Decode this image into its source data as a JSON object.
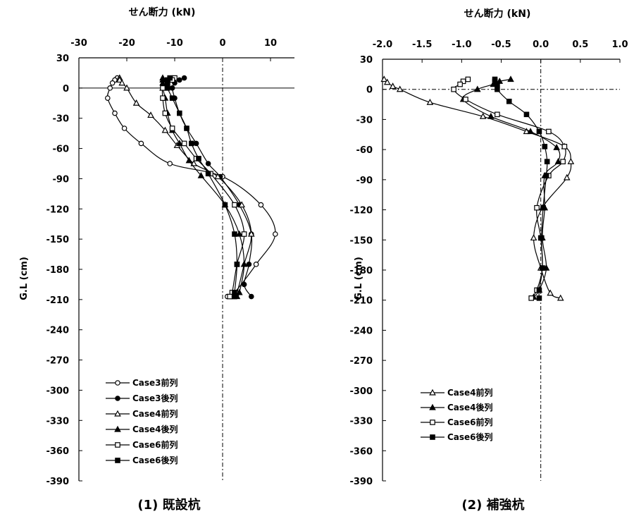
{
  "chart_data": [
    {
      "type": "line",
      "caption": "(1) 既設杭",
      "xlabel": "せん断力 (kN)",
      "ylabel": "G.L (cm)",
      "xlim": [
        -30,
        15
      ],
      "xticks": [
        -30,
        -20,
        -10,
        0,
        10
      ],
      "ylim": [
        -390,
        30
      ],
      "yticks": [
        30,
        0,
        -30,
        -60,
        -90,
        -120,
        -150,
        -180,
        -210,
        -240,
        -270,
        -300,
        -330,
        -360,
        -390
      ],
      "legend_position": "bottom-left",
      "series": [
        {
          "name": "Case3前列",
          "marker": "circle",
          "filled": false,
          "x": [
            -22,
            -22.5,
            -23,
            -23.5,
            -24,
            -22.5,
            -20.5,
            -17,
            -11,
            0,
            8,
            11,
            7,
            2.5,
            1
          ],
          "y": [
            10,
            8,
            5,
            0,
            -10,
            -25,
            -40,
            -55,
            -75,
            -88,
            -116,
            -145,
            -175,
            -203,
            -207
          ]
        },
        {
          "name": "Case3後列",
          "marker": "circle",
          "filled": true,
          "x": [
            -8,
            -9,
            -10,
            -10.5,
            -10,
            -9,
            -7.5,
            -5.5,
            -3,
            -0.5,
            3.5,
            6,
            5.5,
            4.5,
            6
          ],
          "y": [
            10,
            8,
            5,
            0,
            -10,
            -25,
            -40,
            -55,
            -75,
            -88,
            -116,
            -145,
            -175,
            -195,
            -207
          ]
        },
        {
          "name": "Case4前列",
          "marker": "triangle",
          "filled": false,
          "x": [
            -21.5,
            -21.5,
            -21,
            -20,
            -18,
            -15,
            -12,
            -9.5,
            -6,
            -1,
            4,
            6,
            4.5,
            3,
            2
          ],
          "y": [
            10,
            8,
            5,
            0,
            -15,
            -27,
            -42,
            -57,
            -75,
            -88,
            -116,
            -145,
            -175,
            -203,
            -207
          ]
        },
        {
          "name": "Case4後列",
          "marker": "triangle",
          "filled": true,
          "x": [
            -12.5,
            -12.5,
            -12.5,
            -12.5,
            -12,
            -11.5,
            -10.5,
            -9,
            -7,
            -4.5,
            0.5,
            3.5,
            4.5,
            3.5,
            3
          ],
          "y": [
            10,
            8,
            5,
            0,
            -10,
            -25,
            -42,
            -55,
            -72,
            -87,
            -116,
            -145,
            -175,
            -203,
            -207
          ]
        },
        {
          "name": "Case6前列",
          "marker": "square",
          "filled": false,
          "x": [
            -10,
            -10.5,
            -11.5,
            -12.5,
            -12.5,
            -12,
            -10.5,
            -8,
            -5.5,
            -2.5,
            2.5,
            4.5,
            3,
            2,
            1.5
          ],
          "y": [
            10,
            8,
            5,
            0,
            -10,
            -25,
            -40,
            -55,
            -70,
            -85,
            -116,
            -145,
            -175,
            -203,
            -207
          ]
        },
        {
          "name": "Case6後列",
          "marker": "square",
          "filled": true,
          "x": [
            -11,
            -11.5,
            -11.5,
            -11.5,
            -10.5,
            -9,
            -7.5,
            -6.5,
            -5,
            -3,
            0.5,
            2.5,
            3,
            2.5,
            2.5
          ],
          "y": [
            10,
            8,
            5,
            0,
            -10,
            -25,
            -40,
            -55,
            -70,
            -85,
            -116,
            -145,
            -175,
            -203,
            -207
          ]
        }
      ]
    },
    {
      "type": "line",
      "caption": "(2) 補強杭",
      "xlabel": "せん断力 (kN)",
      "ylabel": "G.L (cm)",
      "xlim": [
        -2.0,
        1.0
      ],
      "xticks": [
        -2.0,
        -1.5,
        -1.0,
        -0.5,
        0.0,
        0.5,
        1.0
      ],
      "xtick_labels": [
        "-2.0",
        "-1.5",
        "-1.0",
        "-0.5",
        "0.0",
        "0.5",
        "1.0"
      ],
      "ylim": [
        -390,
        30
      ],
      "yticks": [
        30,
        0,
        -30,
        -60,
        -90,
        -120,
        -150,
        -180,
        -210,
        -240,
        -270,
        -300,
        -330,
        -360,
        -390
      ],
      "legend_position": "bottom-left",
      "series": [
        {
          "name": "Case4前列",
          "marker": "triangle",
          "filled": false,
          "x": [
            -1.98,
            -1.94,
            -1.87,
            -1.78,
            -1.4,
            -0.73,
            -0.18,
            0.3,
            0.38,
            0.33,
            0.02,
            -0.09,
            0.0,
            0.12,
            0.25
          ],
          "y": [
            10,
            7,
            3,
            0,
            -13,
            -27,
            -42,
            -57,
            -72,
            -88,
            -118,
            -148,
            -178,
            -203,
            -208
          ]
        },
        {
          "name": "Case4後列",
          "marker": "triangle",
          "filled": true,
          "x": [
            -0.38,
            -0.52,
            -0.6,
            -0.8,
            -0.98,
            -0.63,
            -0.13,
            0.2,
            0.22,
            0.05,
            0.05,
            0.02,
            0.07,
            -0.02,
            -0.09
          ],
          "y": [
            10,
            8,
            5,
            0,
            -10,
            -27,
            -42,
            -58,
            -72,
            -86,
            -118,
            -148,
            -178,
            -200,
            -207
          ]
        },
        {
          "name": "Case6前列",
          "marker": "square",
          "filled": false,
          "x": [
            -0.92,
            -0.98,
            -1.02,
            -1.1,
            -0.95,
            -0.55,
            0.1,
            0.3,
            0.28,
            0.1,
            -0.05,
            0.0,
            0.02,
            -0.05,
            -0.12
          ],
          "y": [
            10,
            8,
            5,
            0,
            -10,
            -25,
            -42,
            -57,
            -72,
            -86,
            -118,
            -148,
            -178,
            -200,
            -208
          ]
        },
        {
          "name": "Case6後列",
          "marker": "square",
          "filled": true,
          "x": [
            -0.58,
            -0.58,
            -0.55,
            -0.55,
            -0.4,
            -0.18,
            -0.02,
            0.05,
            0.08,
            0.07,
            0.03,
            0.01,
            0.02,
            -0.02,
            -0.02
          ],
          "y": [
            10,
            8,
            5,
            0,
            -12,
            -25,
            -42,
            -57,
            -72,
            -86,
            -118,
            -148,
            -178,
            -200,
            -208
          ]
        }
      ]
    }
  ]
}
